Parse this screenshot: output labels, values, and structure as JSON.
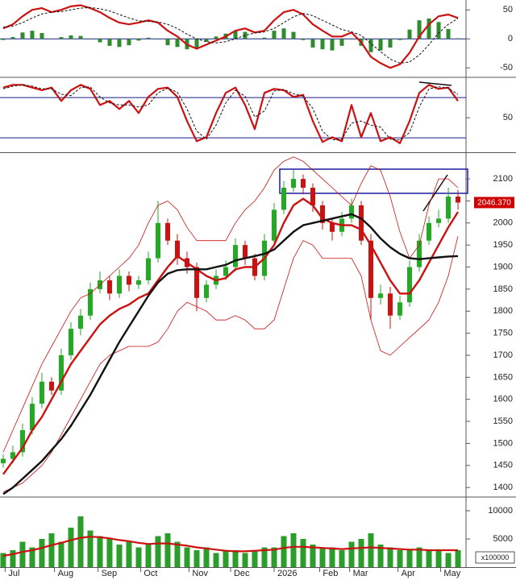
{
  "chart_data": [
    {
      "type": "line",
      "xlim": [
        -0.33,
        47.83
      ],
      "ylim": [
        -65,
        67
      ],
      "yticks": [
        -50,
        0,
        50
      ],
      "reference_lines": [
        0
      ],
      "reference_color": "#1a1a8c",
      "histogram": {
        "color": "#2e8b2e",
        "values": [
          -2,
          3,
          11,
          14,
          10,
          0,
          3,
          6,
          5,
          -1,
          -6,
          -12,
          -14,
          -11,
          -3,
          2,
          -1,
          -11,
          -14,
          -18,
          -17,
          -5,
          4,
          9,
          14,
          12,
          1,
          2,
          14,
          18,
          12,
          -2,
          -15,
          -18,
          -20,
          -12,
          -1,
          -12,
          -23,
          -20,
          -15,
          -2,
          16,
          32,
          35,
          29,
          17,
          1
        ]
      },
      "series": [
        {
          "color": "#cc1111",
          "width": 2.2,
          "dash": false,
          "values": [
            18,
            25,
            39,
            50,
            53,
            46,
            50,
            56,
            58,
            53,
            46,
            36,
            28,
            25,
            28,
            32,
            28,
            14,
            4,
            -10,
            -17,
            -10,
            -3,
            4,
            14,
            18,
            11,
            14,
            32,
            46,
            50,
            42,
            25,
            14,
            4,
            4,
            11,
            -6,
            -31,
            -42,
            -50,
            -44,
            -24,
            4,
            25,
            39,
            42,
            36
          ]
        },
        {
          "color": "#111111",
          "width": 1,
          "dash": true,
          "values": [
            20,
            22,
            28,
            36,
            43,
            46,
            47,
            50,
            53,
            54,
            52,
            48,
            42,
            36,
            31,
            30,
            29,
            25,
            18,
            8,
            0,
            -5,
            -7,
            -5,
            0,
            6,
            10,
            12,
            18,
            28,
            38,
            44,
            40,
            32,
            24,
            16,
            12,
            6,
            -8,
            -22,
            -35,
            -42,
            -40,
            -28,
            -10,
            10,
            25,
            35
          ]
        }
      ]
    },
    {
      "type": "line",
      "xlim": [
        -0.33,
        47.83
      ],
      "ylim": [
        1,
        109
      ],
      "yticks": [
        50
      ],
      "reference_lines": [
        80,
        20
      ],
      "reference_color": "#1a1a8c",
      "series": [
        {
          "color": "#cc1111",
          "width": 2.2,
          "dash": false,
          "values": [
            95,
            99,
            99,
            95,
            91,
            95,
            75,
            91,
            99,
            93,
            69,
            75,
            63,
            75,
            57,
            81,
            93,
            95,
            81,
            45,
            15,
            21,
            57,
            87,
            95,
            69,
            33,
            87,
            93,
            91,
            81,
            84,
            45,
            14,
            21,
            15,
            69,
            21,
            57,
            15,
            21,
            12,
            45,
            87,
            99,
            93,
            95,
            75
          ]
        },
        {
          "color": "#111111",
          "width": 1,
          "dash": true,
          "values": [
            93,
            97,
            99,
            97,
            93,
            93,
            85,
            83,
            95,
            96,
            81,
            72,
            69,
            69,
            66,
            69,
            87,
            94,
            88,
            63,
            30,
            18,
            39,
            72,
            91,
            82,
            51,
            60,
            90,
            92,
            86,
            82,
            64,
            30,
            17,
            18,
            42,
            45,
            39,
            36,
            18,
            17,
            28,
            66,
            93,
            96,
            94,
            85
          ]
        }
      ]
    },
    {
      "type": "candlestick",
      "xlim": [
        -0.33,
        47.83
      ],
      "ylim": [
        1382,
        2155
      ],
      "yticks": [
        1400,
        1450,
        1500,
        1550,
        1600,
        1650,
        1700,
        1750,
        1800,
        1850,
        1900,
        1950,
        2000,
        2050,
        2100
      ],
      "up_color": "#22aa22",
      "down_color": "#cc1111",
      "open": [
        1455,
        1465,
        1480,
        1530,
        1590,
        1640,
        1620,
        1700,
        1760,
        1790,
        1850,
        1870,
        1840,
        1880,
        1860,
        1870,
        1920,
        2000,
        1960,
        1920,
        1900,
        1830,
        1860,
        1880,
        1900,
        1950,
        1920,
        1880,
        1960,
        2030,
        2080,
        2100,
        2080,
        2040,
        2000,
        1980,
        2010,
        2040,
        1960,
        1830,
        1840,
        1790,
        1820,
        1900,
        1960,
        2000,
        2010,
        2060
      ],
      "high": [
        1475,
        1495,
        1545,
        1605,
        1660,
        1650,
        1715,
        1775,
        1805,
        1865,
        1890,
        1880,
        1895,
        1890,
        1880,
        1935,
        2050,
        2010,
        1975,
        1935,
        1910,
        1870,
        1895,
        1915,
        1965,
        1960,
        1930,
        1975,
        2045,
        2095,
        2120,
        2110,
        2090,
        2050,
        2010,
        2025,
        2055,
        2050,
        1975,
        1860,
        1855,
        1835,
        1915,
        1975,
        2015,
        2030,
        2080,
        2075
      ],
      "low": [
        1445,
        1455,
        1470,
        1520,
        1580,
        1610,
        1610,
        1690,
        1745,
        1780,
        1840,
        1825,
        1830,
        1845,
        1850,
        1860,
        1910,
        1950,
        1905,
        1885,
        1800,
        1820,
        1850,
        1870,
        1890,
        1905,
        1870,
        1870,
        1950,
        2020,
        2070,
        2065,
        2025,
        1985,
        1960,
        1970,
        2000,
        1950,
        1780,
        1815,
        1760,
        1780,
        1810,
        1890,
        1950,
        1990,
        2000,
        2030
      ],
      "close": [
        1465,
        1480,
        1530,
        1590,
        1640,
        1620,
        1700,
        1760,
        1790,
        1850,
        1870,
        1840,
        1880,
        1860,
        1870,
        1920,
        2000,
        1960,
        1920,
        1900,
        1830,
        1860,
        1880,
        1900,
        1950,
        1920,
        1880,
        1960,
        2030,
        2080,
        2100,
        2080,
        2040,
        2000,
        1980,
        2010,
        2040,
        1960,
        1830,
        1840,
        1790,
        1820,
        1900,
        1960,
        2000,
        2010,
        2060,
        2046.37
      ],
      "last_value_label": "2046.370",
      "last_value_color": "#d00000",
      "overlays": [
        {
          "color": "#cc1111",
          "width": 0.8,
          "values": [
            1480,
            1530,
            1580,
            1630,
            1680,
            1720,
            1760,
            1800,
            1830,
            1840,
            1860,
            1880,
            1900,
            1920,
            1950,
            2000,
            2040,
            2050,
            2030,
            1990,
            1960,
            1960,
            1960,
            1960,
            2000,
            2030,
            2050,
            2080,
            2120,
            2140,
            2150,
            2140,
            2120,
            2100,
            2080,
            2060,
            2040,
            2090,
            2130,
            2120,
            2060,
            1980,
            1920,
            1950,
            2040,
            2100,
            2100,
            2080
          ]
        },
        {
          "color": "#cc1111",
          "width": 0.8,
          "values": [
            1390,
            1400,
            1410,
            1430,
            1450,
            1480,
            1520,
            1560,
            1600,
            1640,
            1680,
            1700,
            1710,
            1720,
            1720,
            1720,
            1730,
            1760,
            1800,
            1820,
            1810,
            1800,
            1780,
            1780,
            1790,
            1780,
            1760,
            1760,
            1780,
            1850,
            1920,
            1960,
            1950,
            1920,
            1920,
            1920,
            1920,
            1880,
            1780,
            1710,
            1700,
            1720,
            1740,
            1760,
            1780,
            1820,
            1880,
            1970
          ]
        },
        {
          "color": "#cc1111",
          "width": 2.4,
          "values": [
            1430,
            1460,
            1490,
            1530,
            1560,
            1600,
            1640,
            1680,
            1710,
            1740,
            1770,
            1790,
            1805,
            1815,
            1830,
            1840,
            1870,
            1900,
            1925,
            1910,
            1895,
            1880,
            1870,
            1875,
            1895,
            1900,
            1900,
            1920,
            1950,
            2000,
            2040,
            2055,
            2040,
            2010,
            2000,
            1995,
            1995,
            1985,
            1950,
            1910,
            1870,
            1840,
            1840,
            1870,
            1910,
            1950,
            1990,
            2025
          ]
        },
        {
          "color": "#111111",
          "width": 2.4,
          "values": [
            1385,
            1400,
            1420,
            1440,
            1460,
            1485,
            1510,
            1540,
            1575,
            1610,
            1650,
            1690,
            1730,
            1765,
            1800,
            1835,
            1865,
            1885,
            1893,
            1895,
            1895,
            1895,
            1900,
            1905,
            1915,
            1920,
            1925,
            1930,
            1940,
            1960,
            1980,
            1995,
            2000,
            2005,
            2010,
            2015,
            2020,
            2010,
            1990,
            1965,
            1945,
            1930,
            1920,
            1918,
            1920,
            1922,
            1924,
            1925
          ]
        }
      ]
    },
    {
      "type": "bar",
      "xlim": [
        -0.33,
        47.83
      ],
      "ylim": [
        0,
        12150
      ],
      "yticks": [
        5000,
        10000
      ],
      "color": "#2a9d2a",
      "values": [
        2500,
        3000,
        4500,
        3500,
        5000,
        6000,
        4500,
        7000,
        9000,
        6500,
        5500,
        5000,
        4000,
        4500,
        3500,
        4000,
        5500,
        6000,
        4500,
        3500,
        3000,
        3500,
        2500,
        3000,
        3000,
        2500,
        3000,
        3500,
        3500,
        5500,
        6000,
        5000,
        4000,
        3500,
        3500,
        3000,
        4500,
        5000,
        6000,
        4000,
        3500,
        3000,
        3000,
        3500,
        3000,
        3000,
        2500,
        3000
      ],
      "overlays": [
        {
          "color": "#cc1111",
          "width": 2.2,
          "values": [
            2000,
            2300,
            2700,
            3000,
            3400,
            3900,
            4300,
            4800,
            5200,
            5400,
            5300,
            5100,
            4800,
            4600,
            4300,
            4100,
            4200,
            4200,
            4000,
            3800,
            3500,
            3300,
            3100,
            2900,
            2800,
            2800,
            2900,
            3000,
            3100,
            3400,
            3600,
            3600,
            3500,
            3400,
            3300,
            3200,
            3300,
            3400,
            3500,
            3400,
            3300,
            3200,
            3100,
            3100,
            3000,
            3000,
            3000,
            3000
          ]
        }
      ],
      "unit_label": "x100000",
      "xticks": [
        {
          "value": 0.2,
          "label": "Jul"
        },
        {
          "value": 5.3,
          "label": "Aug"
        },
        {
          "value": 9.8,
          "label": "Sep"
        },
        {
          "value": 14.2,
          "label": "Oct"
        },
        {
          "value": 19.2,
          "label": "Nov"
        },
        {
          "value": 23.5,
          "label": "Dec"
        },
        {
          "value": 28,
          "label": "2026"
        },
        {
          "value": 32.7,
          "label": "Feb"
        },
        {
          "value": 35.8,
          "label": "Mar"
        },
        {
          "value": 40.8,
          "label": "Apr"
        },
        {
          "value": 45.2,
          "label": "May"
        }
      ]
    }
  ]
}
